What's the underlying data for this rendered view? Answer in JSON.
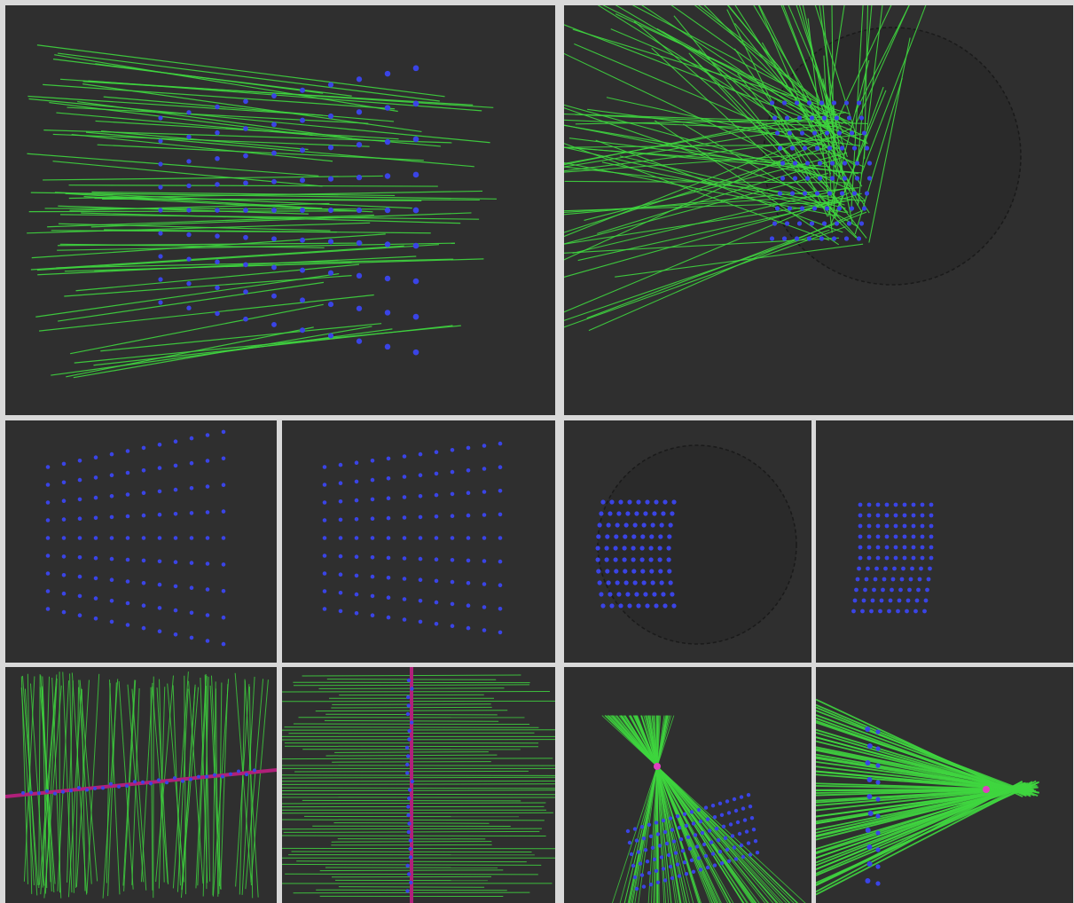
{
  "viewports": [
    {
      "id": "a",
      "view": "perspective-rays-front"
    },
    {
      "id": "b",
      "view": "perspective-rays-hemisphere"
    },
    {
      "id": "c",
      "view": "points-front-perspective"
    },
    {
      "id": "d",
      "view": "points-front-orthographic"
    },
    {
      "id": "e",
      "view": "points-on-hemisphere"
    },
    {
      "id": "f",
      "view": "points-grid-side"
    },
    {
      "id": "g",
      "view": "rays-vertical-with-axis"
    },
    {
      "id": "h",
      "view": "rays-horizontal-with-axis"
    },
    {
      "id": "i",
      "view": "rays-converging-bottom"
    },
    {
      "id": "j",
      "view": "rays-converging-right"
    }
  ],
  "colors": {
    "background": "#2f2f2f",
    "separator": "#d9d9d9",
    "ray": "#3fd63f",
    "point": "#3a44e6",
    "sphere": "#2b2b2b",
    "axis": "#b0207a",
    "focus": "#e040c0"
  }
}
